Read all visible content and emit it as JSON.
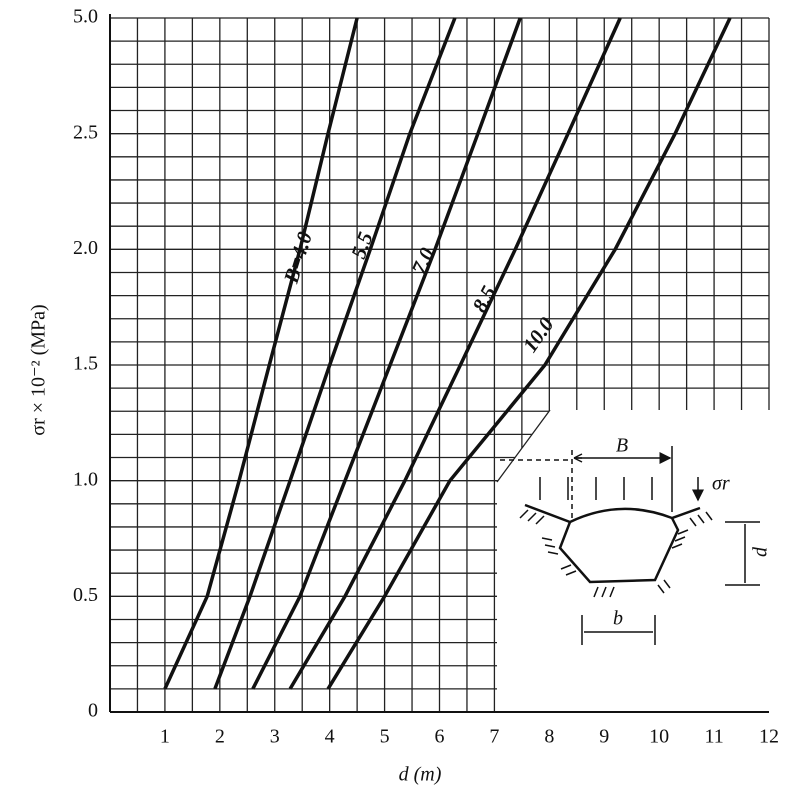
{
  "chart_data": {
    "type": "line",
    "y_label": "σr × 10⁻² (MPa)",
    "x_label": "d (m)",
    "xlim": [
      0,
      12
    ],
    "xticks": [
      1,
      2,
      3,
      4,
      5,
      6,
      7,
      8,
      9,
      10,
      11,
      12
    ],
    "xminorticks": [
      0.5,
      1.5,
      2.5,
      3.5,
      4.5,
      5.5,
      6.5,
      7.5,
      8.5,
      9.5,
      10.5,
      11.5
    ],
    "ylim": [
      0,
      5
    ],
    "yticks": [
      0,
      {
        "value": 0.5,
        "label": "0.5"
      },
      {
        "value": 1,
        "label": "1.0"
      },
      {
        "value": 1.5,
        "label": "1.5"
      },
      {
        "value": 2,
        "label": "2.0"
      },
      {
        "value": 2.5,
        "label": "2.5"
      },
      {
        "value": 5,
        "label": "5.0"
      }
    ],
    "yminorticks": [
      0.1,
      0.2,
      0.3,
      0.4,
      0.6,
      0.7,
      0.8,
      0.9,
      1.1,
      1.2,
      1.3,
      1.4,
      1.6,
      1.7,
      1.8,
      1.9,
      2.1,
      2.2,
      2.3,
      2.4,
      3,
      3.5,
      4,
      4.5
    ],
    "grid": true,
    "color": "#111111",
    "series": [
      {
        "name": "B=4.0",
        "x": [
          1.0,
          1.77,
          2.35,
          2.9,
          3.46,
          3.97,
          4.5
        ],
        "values": [
          0.1,
          0.5,
          1.0,
          1.5,
          2.0,
          2.5,
          5.0
        ]
      },
      {
        "name": "5.5",
        "x": [
          1.91,
          2.55,
          3.28,
          4.0,
          4.74,
          5.46,
          6.28
        ],
        "values": [
          0.1,
          0.5,
          1.0,
          1.5,
          2.0,
          2.5,
          5.0
        ]
      },
      {
        "name": "7.0",
        "x": [
          2.6,
          3.46,
          4.28,
          5.1,
          5.92,
          6.7,
          7.47
        ],
        "values": [
          0.1,
          0.5,
          1.0,
          1.5,
          2.0,
          2.5,
          5.0
        ]
      },
      {
        "name": "8.5",
        "x": [
          3.28,
          4.28,
          5.37,
          6.38,
          7.38,
          8.34,
          9.29
        ],
        "values": [
          0.1,
          0.5,
          1.0,
          1.5,
          2.0,
          2.5,
          5.0
        ]
      },
      {
        "name": "10.0",
        "x": [
          3.97,
          5.0,
          6.19,
          7.92,
          9.2,
          10.29,
          11.29
        ],
        "values": [
          0.1,
          0.5,
          1.0,
          1.5,
          2.0,
          2.5,
          5.0
        ]
      }
    ],
    "inset": {
      "width_label": "B",
      "load_label": "σr",
      "height_label": "d",
      "base_label": "b"
    }
  }
}
